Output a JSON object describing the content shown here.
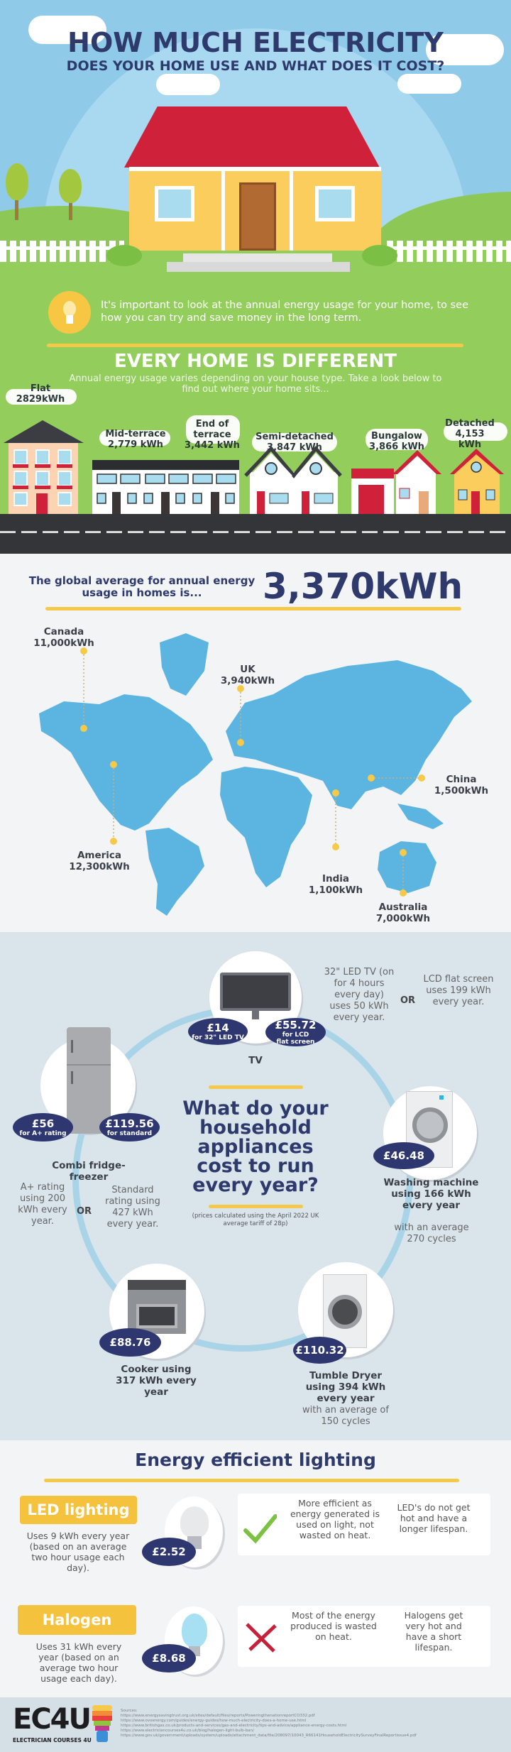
{
  "header": {
    "title": "HOW MUCH ELECTRICITY",
    "subtitle": "DOES YOUR HOME USE AND WHAT DOES IT COST?"
  },
  "intro": {
    "icon": "lightbulb-icon",
    "text": "It's important to look at the annual energy usage for your home, to see how you can try and save money in the long term."
  },
  "homes": {
    "heading": "EVERY HOME IS DIFFERENT",
    "subtitle": "Annual energy usage varies depending on your house type. Take a look below to find out where your home sits...",
    "types": [
      {
        "name": "Flat",
        "value": "2829kWh"
      },
      {
        "name": "Mid-terrace",
        "value": "2,779 kWh"
      },
      {
        "name": "End of terrace",
        "value": "3,442 kWh"
      },
      {
        "name": "Semi-detached",
        "value": "3,847 kWh"
      },
      {
        "name": "Bungalow",
        "value": "3,866 kWh"
      },
      {
        "name": "Detached",
        "value": "4,153 kWh"
      }
    ]
  },
  "global": {
    "label": "The global average for annual energy usage in homes is...",
    "value": "3,370kWh",
    "countries": [
      {
        "name": "Canada",
        "value": "11,000kWh"
      },
      {
        "name": "UK",
        "value": "3,940kWh"
      },
      {
        "name": "China",
        "value": "1,500kWh"
      },
      {
        "name": "India",
        "value": "1,100kWh"
      },
      {
        "name": "America",
        "value": "12,300kWh"
      },
      {
        "name": "Australia",
        "value": "7,000kWh"
      }
    ]
  },
  "appliances": {
    "heading": "What do your household appliances cost to run every year?",
    "note": "(prices calculated using the April 2022 UK average tariff of 28p)",
    "or_label": "OR",
    "tv": {
      "label": "TV",
      "led_price": "£14",
      "led_note": "for 32\" LED TV",
      "lcd_price": "£55.72",
      "lcd_note": "for LCD flat screen",
      "led_text": "32\" LED TV (on for 4 hours every day) uses 50 kWh every year.",
      "lcd_text": "LCD flat screen uses 199 kWh every year."
    },
    "fridge": {
      "label": "Combi fridge-freezer",
      "a_price": "£56",
      "a_note": "for A+ rating",
      "s_price": "£119.56",
      "s_note": "for standard",
      "a_text": "A+ rating using 200 kWh every year.",
      "s_text": "Standard rating using 427 kWh every year."
    },
    "washing": {
      "price": "£46.48",
      "label": "Washing machine using 166 kWh every year",
      "detail": "with an average 270 cycles"
    },
    "cooker": {
      "price": "£88.76",
      "label": "Cooker using 317 kWh every year"
    },
    "dryer": {
      "price": "£110.32",
      "label": "Tumble Dryer using 394 kWh every year",
      "detail": "with an average of 150 cycles"
    }
  },
  "lighting": {
    "heading": "Energy efficient lighting",
    "items": [
      {
        "name": "LED lighting",
        "usage": "Uses 9 kWh every year (based on an average two hour usage each day).",
        "price": "£2.52",
        "point1": "More efficient as energy generated is used on light, not wasted on heat.",
        "point2": "LED's do not get hot and have a longer lifespan.",
        "verdict": "check-icon"
      },
      {
        "name": "Halogen",
        "usage": "Uses 31 kWh every year (based on an average two hour usage each day).",
        "price": "£8.68",
        "point1": "Most of the energy produced is wasted on heat.",
        "point2": "Halogens get very hot and have a short lifespan.",
        "verdict": "cross-icon"
      }
    ]
  },
  "footer": {
    "logo": "EC4U",
    "logo_sub": "ELECTRICIAN COURSES 4U",
    "sources_label": "Sources:",
    "sources": [
      "https://www.energysavingtrust.org.uk/sites/default/files/reports/PoweringthenationreportCO332.pdf",
      "https://www.ovoenergy.com/guides/energy-guides/how-much-electricity-does-a-home-use.html",
      "https://www.britishgas.co.uk/products-and-services/gas-and-electricity/tips-and-advice/appliance-energy-costs.html",
      "https://www.electriciancourses4u.co.uk/blog/halogen-light-bulb-ban/",
      "https://www.gov.uk/government/uploads/system/uploads/attachment_data/file/208097/10043_R66141HouseholdElectricitySurveyFinalReportissue4.pdf"
    ]
  },
  "colors": {
    "navy": "#2d3a6b",
    "sky": "#8fcbe9",
    "grass": "#93ce5c",
    "accent_yellow": "#f4c23c",
    "map_blue": "#5bb5e0",
    "badge": "#2e3770",
    "roof_red": "#d0213a"
  }
}
